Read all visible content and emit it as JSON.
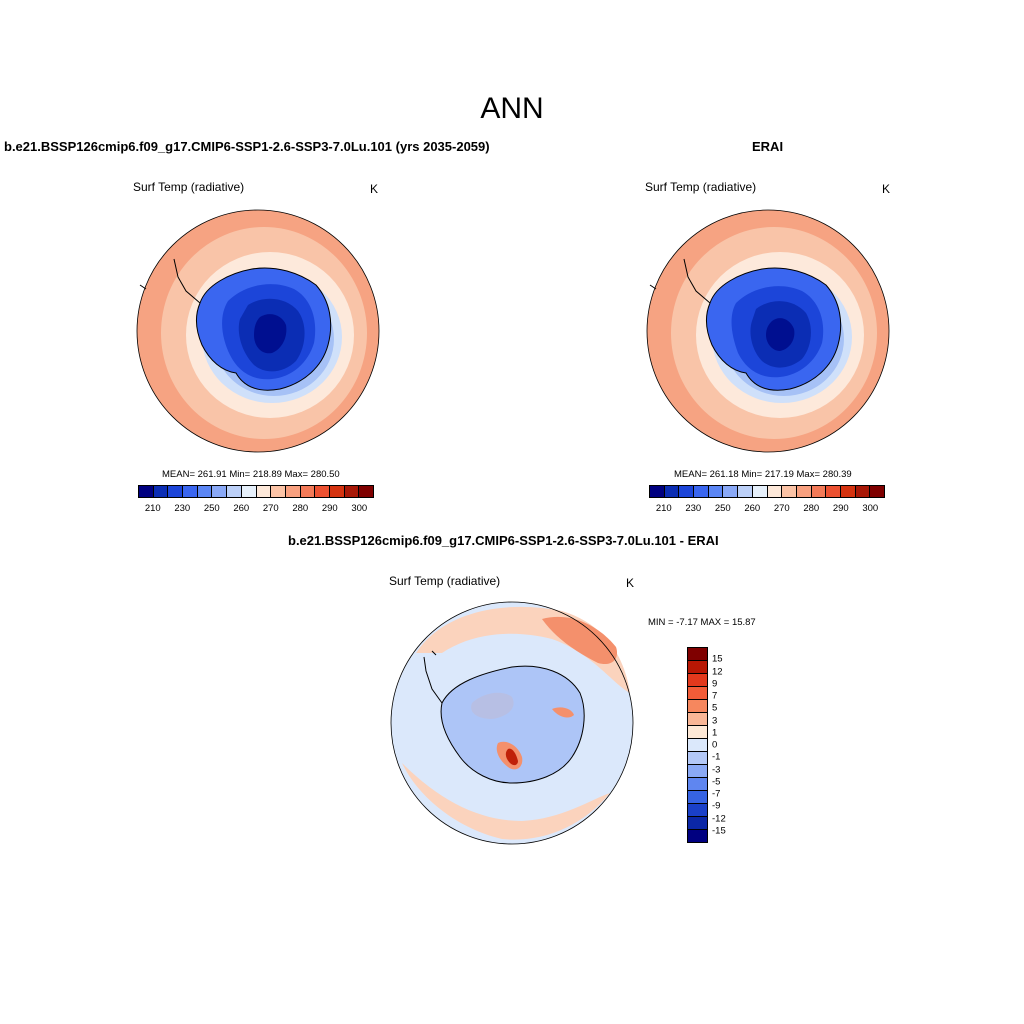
{
  "figure": {
    "title": "ANN"
  },
  "panels": {
    "left": {
      "title": "b.e21.BSSP126cmip6.f09_g17.CMIP6-SSP1-2.6-SSP3-7.0Lu.101 (yrs 2035-2059)",
      "variable": "Surf Temp (radiative)",
      "units": "K",
      "stats": "MEAN= 261.91  Min= 218.89  Max= 280.50"
    },
    "right": {
      "title": "ERAI",
      "variable": "Surf Temp (radiative)",
      "units": "K",
      "stats": "MEAN= 261.18  Min= 217.19  Max= 280.39"
    },
    "diff": {
      "title": "b.e21.BSSP126cmip6.f09_g17.CMIP6-SSP1-2.6-SSP3-7.0Lu.101 - ERAI",
      "variable": "Surf Temp (radiative)",
      "units": "K",
      "stats": "MIN =  -7.17 MAX =  15.87"
    }
  },
  "colorbar_abs": {
    "colors": [
      "#000080",
      "#0b2db4",
      "#1c45d9",
      "#3a66f0",
      "#5b86f5",
      "#8aa9f7",
      "#bcd0f8",
      "#e6f0fb",
      "#fde8d9",
      "#fbc3a6",
      "#f8a07f",
      "#f37a58",
      "#ec5131",
      "#d53310",
      "#a81807",
      "#7f0000"
    ],
    "tick_labels": [
      "210",
      "230",
      "250",
      "260",
      "270",
      "280",
      "290",
      "300"
    ]
  },
  "colorbar_diff": {
    "colors": [
      "#7f0000",
      "#b81704",
      "#e2391d",
      "#f25c38",
      "#f6875e",
      "#f9b696",
      "#fde8d6",
      "#dbe8fb",
      "#b3c8f7",
      "#8aa9f5",
      "#5f86f0",
      "#3663e3",
      "#1a40c8",
      "#0b27a6",
      "#000080"
    ],
    "tick_labels": [
      "15",
      "12",
      "9",
      "7",
      "5",
      "3",
      "1",
      "0",
      "-1",
      "-3",
      "-5",
      "-7",
      "-9",
      "-12",
      "-15"
    ]
  },
  "map_fill_colors": {
    "outer": "#f6a382",
    "ring1": "#f9c4a8",
    "ring2": "#fde9db",
    "ring3": "#cfe0fa",
    "ring4": "#a6c1f6",
    "land1": "#3a66f0",
    "land2": "#1c45d9",
    "land3": "#0b2db4",
    "land4": "#000f90",
    "diff_base": "#dbe8fb",
    "diff_warm": "#fbd3bd",
    "diff_hot": "#f4906c",
    "diff_cool": "#9ab7f5",
    "diff_hotspot": "#c02008"
  }
}
